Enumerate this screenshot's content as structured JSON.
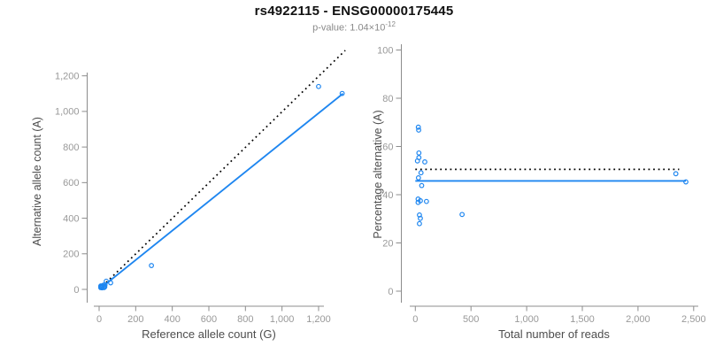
{
  "header": {
    "title": "rs4922115 - ENSG00000175445",
    "subtitle_base": "p-value: 1.04×10",
    "subtitle_exponent": "-12"
  },
  "colors": {
    "point_blue": "#1e86f0",
    "fit_blue": "#1e86f0",
    "identity_black": "#000000",
    "axis_gray": "#8c8c8c",
    "tick_label_gray": "#999999",
    "axis_title_gray": "#4d4d4d"
  },
  "chart_data": [
    {
      "type": "scatter",
      "panel": "left",
      "xlabel": "Reference allele count (G)",
      "ylabel": "Alternative allele count (A)",
      "xlim": [
        0,
        1380
      ],
      "ylim": [
        0,
        1360
      ],
      "xticks": [
        0,
        200,
        400,
        600,
        800,
        1000,
        1200
      ],
      "yticks": [
        0,
        200,
        400,
        600,
        800,
        1000,
        1200
      ],
      "grid": false,
      "legend": "none",
      "points": [
        [
          9,
          18
        ],
        [
          10,
          20
        ],
        [
          14,
          18
        ],
        [
          15,
          17
        ],
        [
          9,
          10
        ],
        [
          39,
          46
        ],
        [
          26,
          25
        ],
        [
          15,
          13
        ],
        [
          32,
          25
        ],
        [
          15,
          10
        ],
        [
          16,
          9
        ],
        [
          28,
          17
        ],
        [
          63,
          37
        ],
        [
          25,
          12
        ],
        [
          31,
          14
        ],
        [
          27,
          10
        ],
        [
          286,
          134
        ],
        [
          1200,
          1140
        ],
        [
          1329,
          1101
        ]
      ],
      "lines": [
        {
          "name": "identity-line",
          "style": "dotted",
          "color": "#000000",
          "x1": 0,
          "y1": 0,
          "x2": 1346,
          "y2": 1343
        },
        {
          "name": "fit-line",
          "style": "solid",
          "color": "#1e86f0",
          "x1": 0,
          "y1": 0,
          "x2": 1333,
          "y2": 1100
        }
      ]
    },
    {
      "type": "scatter",
      "panel": "right",
      "xlabel": "Total number of reads",
      "ylabel": "Percentage alternative (A)",
      "xlim": [
        0,
        2550
      ],
      "ylim": [
        0,
        100
      ],
      "xticks": [
        0,
        500,
        1000,
        1500,
        2000,
        2500
      ],
      "yticks": [
        0,
        20,
        40,
        60,
        80,
        100
      ],
      "grid": false,
      "legend": "none",
      "points": [
        [
          27,
          68.0
        ],
        [
          30,
          66.8
        ],
        [
          32,
          57.3
        ],
        [
          32,
          55.4
        ],
        [
          19,
          54.0
        ],
        [
          85,
          53.6
        ],
        [
          51,
          49.1
        ],
        [
          28,
          47.0
        ],
        [
          57,
          43.8
        ],
        [
          25,
          38.2
        ],
        [
          25,
          36.8
        ],
        [
          45,
          37.5
        ],
        [
          100,
          37.2
        ],
        [
          37,
          31.6
        ],
        [
          45,
          30.2
        ],
        [
          37,
          28.0
        ],
        [
          420,
          31.8
        ],
        [
          2340,
          48.7
        ],
        [
          2430,
          45.3
        ]
      ],
      "lines": [
        {
          "name": "expected-line",
          "style": "dotted",
          "color": "#000000",
          "x1": 0,
          "y1": 50.5,
          "x2": 2370,
          "y2": 50.5
        },
        {
          "name": "mean-line",
          "style": "solid",
          "color": "#1e86f0",
          "x1": 0,
          "y1": 45.7,
          "x2": 2430,
          "y2": 45.7
        }
      ]
    }
  ]
}
